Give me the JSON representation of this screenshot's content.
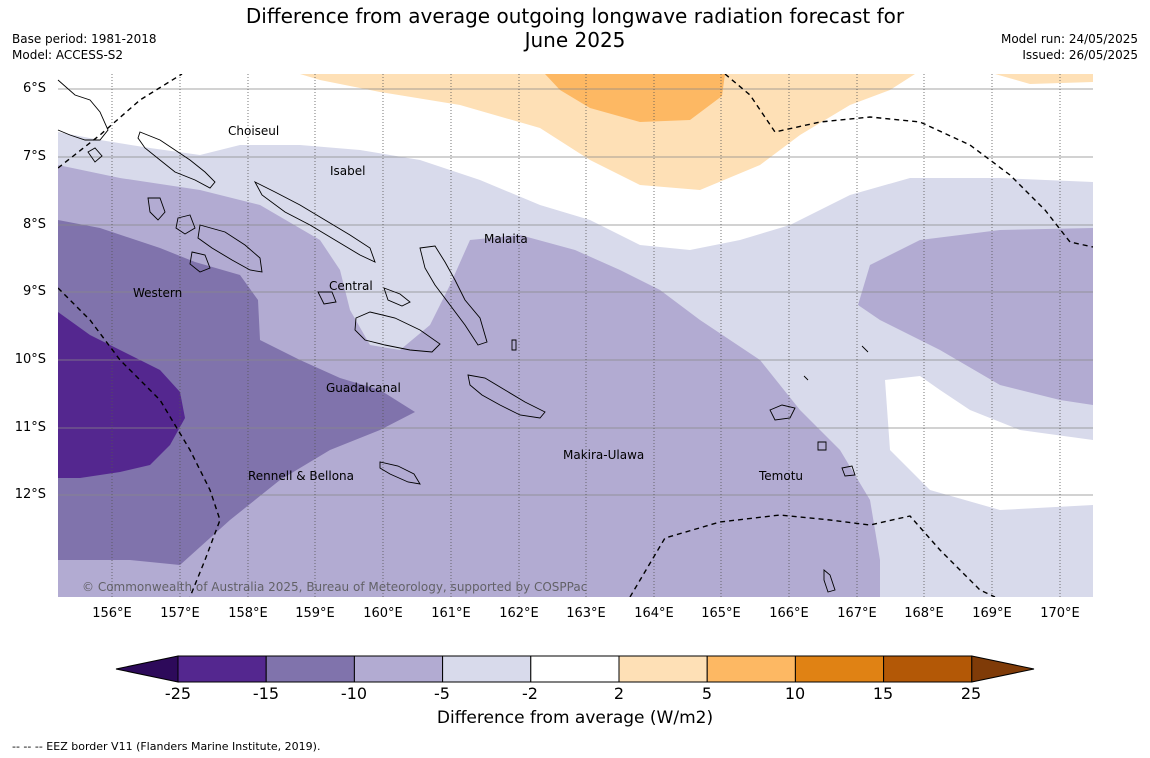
{
  "title": {
    "line1": "Difference from average outgoing longwave radiation forecast for",
    "line2": "June 2025"
  },
  "meta_left": {
    "base_period": "Base period: 1981-2018",
    "model": "Model: ACCESS-S2"
  },
  "meta_right": {
    "model_run": "Model run: 24/05/2025",
    "issued": "Issued: 26/05/2025"
  },
  "lat_labels": [
    "6°S",
    "7°S",
    "8°S",
    "9°S",
    "10°S",
    "11°S",
    "12°S"
  ],
  "lon_labels": [
    "156°E",
    "157°E",
    "158°E",
    "159°E",
    "160°E",
    "161°E",
    "162°E",
    "163°E",
    "164°E",
    "165°E",
    "166°E",
    "167°E",
    "168°E",
    "169°E",
    "170°E"
  ],
  "regions": [
    "Choiseul",
    "Isabel",
    "Malaita",
    "Western",
    "Central",
    "Guadalcanal",
    "Makira-Ulawa",
    "Rennell & Bellona",
    "Temotu"
  ],
  "copyright": "© Commonwealth of Australia 2025, Bureau of Meteorology, supported by COSPPac",
  "colorbar": {
    "ticks": [
      "-25",
      "-15",
      "-10",
      "-5",
      "-2",
      "2",
      "5",
      "10",
      "15",
      "25"
    ],
    "colors": [
      "#2d0a5a",
      "#54278f",
      "#8073ac",
      "#b2abd2",
      "#d8daeb",
      "#ffffff",
      "#fee0b6",
      "#fdb863",
      "#e08214",
      "#b35806",
      "#7f3b08"
    ],
    "label": "Difference from average (W/m2)"
  },
  "eez_legend": "--  --  -- EEZ border V11 (Flanders Marine Institute, 2019)."
}
